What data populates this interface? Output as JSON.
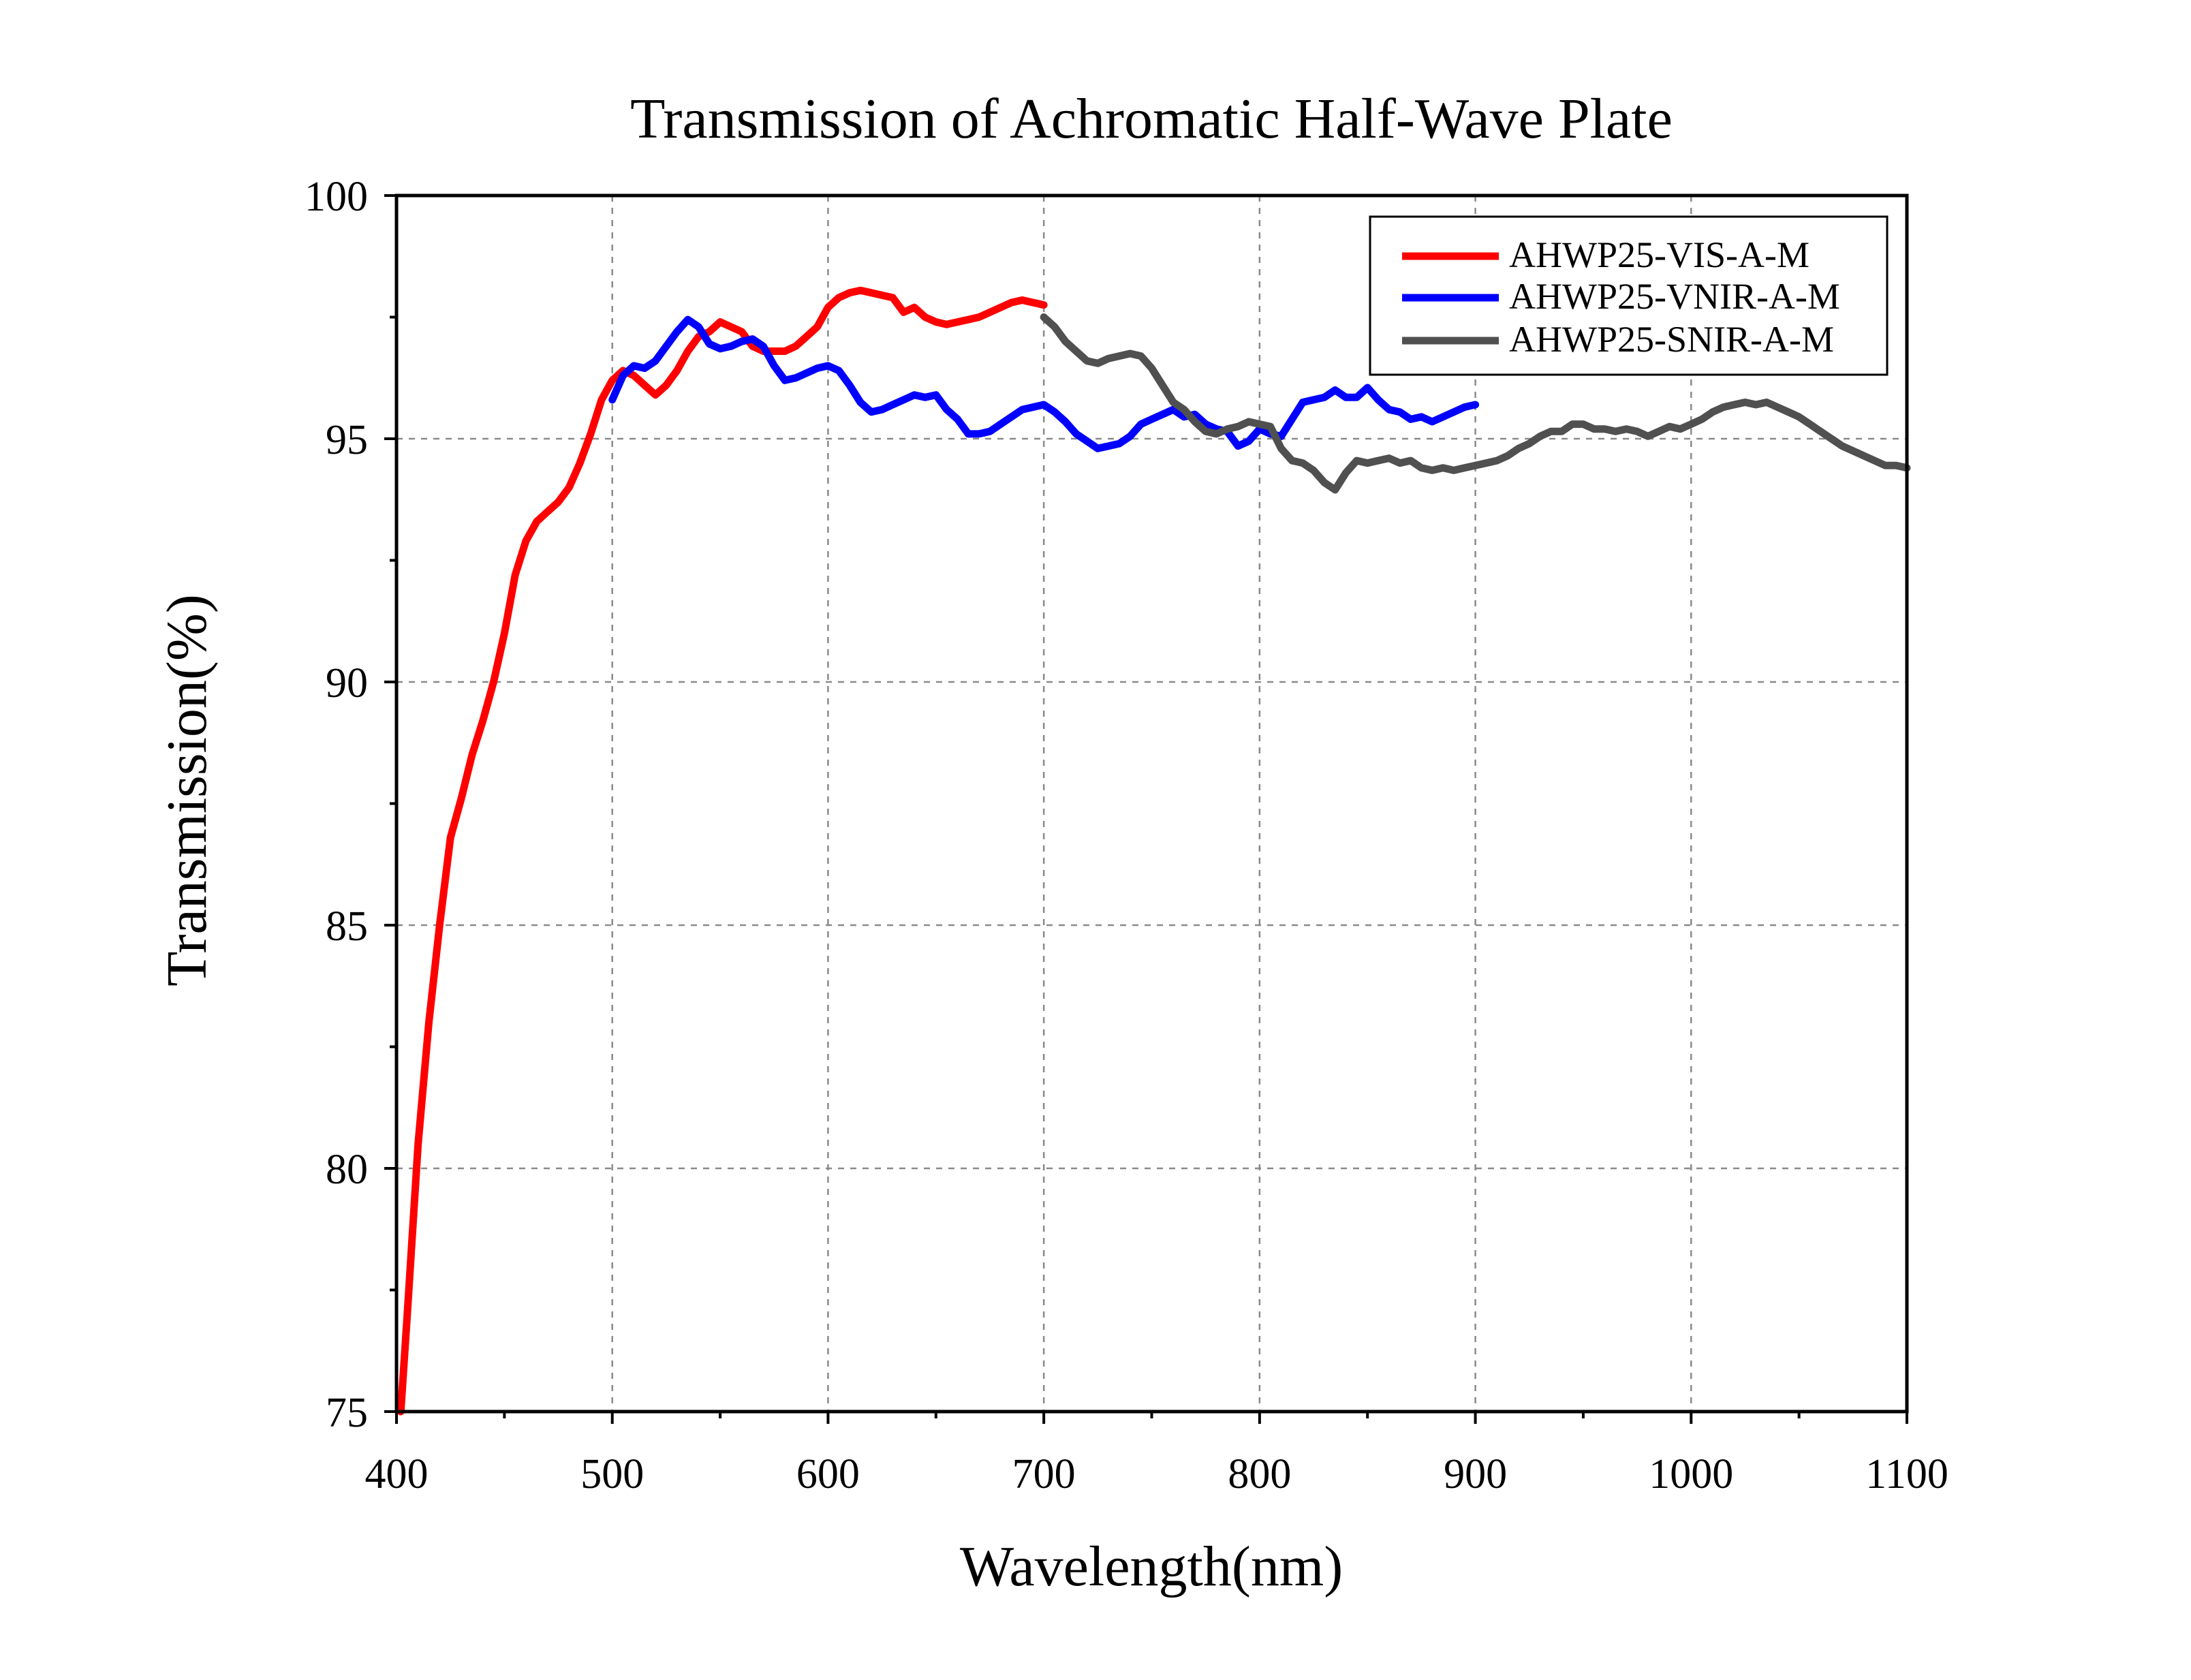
{
  "chart_data": {
    "type": "line",
    "title": "Transmission of Achromatic Half-Wave Plate",
    "xlabel": "Wavelength(nm)",
    "ylabel": "Transmission(%)",
    "xlim": [
      400,
      1100
    ],
    "ylim": [
      75,
      100
    ],
    "x_ticks": [
      "400",
      "500",
      "600",
      "700",
      "800",
      "900",
      "1000",
      "1100"
    ],
    "y_ticks": [
      "75",
      "80",
      "85",
      "90",
      "95",
      "100"
    ],
    "grid": true,
    "legend_position": "top-right",
    "series": [
      {
        "name": "AHWP25-VIS-A-M",
        "color": "#ff0000",
        "x": [
          402,
          405,
          410,
          415,
          420,
          425,
          430,
          435,
          440,
          445,
          450,
          455,
          460,
          465,
          470,
          475,
          480,
          485,
          490,
          495,
          500,
          505,
          510,
          515,
          520,
          525,
          530,
          535,
          540,
          545,
          550,
          555,
          560,
          565,
          570,
          575,
          580,
          585,
          590,
          595,
          600,
          605,
          610,
          615,
          620,
          625,
          630,
          635,
          640,
          645,
          650,
          655,
          660,
          665,
          670,
          675,
          680,
          685,
          690,
          695,
          700
        ],
        "y": [
          75.0,
          77.0,
          80.5,
          83.0,
          85.0,
          86.8,
          87.6,
          88.5,
          89.2,
          90.0,
          91.0,
          92.2,
          92.9,
          93.3,
          93.5,
          93.7,
          94.0,
          94.5,
          95.1,
          95.8,
          96.2,
          96.4,
          96.3,
          96.1,
          95.9,
          96.1,
          96.4,
          96.8,
          97.1,
          97.2,
          97.4,
          97.3,
          97.2,
          96.9,
          96.8,
          96.8,
          96.8,
          96.9,
          97.1,
          97.3,
          97.7,
          97.9,
          98.0,
          98.05,
          98.0,
          97.95,
          97.9,
          97.6,
          97.7,
          97.5,
          97.4,
          97.35,
          97.4,
          97.45,
          97.5,
          97.6,
          97.7,
          97.8,
          97.85,
          97.8,
          97.75
        ]
      },
      {
        "name": "AHWP25-VNIR-A-M",
        "color": "#0000ff",
        "x": [
          500,
          505,
          510,
          515,
          520,
          525,
          530,
          535,
          540,
          545,
          550,
          555,
          560,
          565,
          570,
          575,
          580,
          585,
          590,
          595,
          600,
          605,
          610,
          615,
          620,
          625,
          630,
          635,
          640,
          645,
          650,
          655,
          660,
          665,
          670,
          675,
          680,
          685,
          690,
          695,
          700,
          705,
          710,
          715,
          720,
          725,
          730,
          735,
          740,
          745,
          750,
          755,
          760,
          765,
          770,
          775,
          780,
          785,
          790,
          795,
          800,
          805,
          810,
          815,
          820,
          825,
          830,
          835,
          840,
          845,
          850,
          855,
          860,
          865,
          870,
          875,
          880,
          885,
          890,
          895,
          900
        ],
        "y": [
          95.8,
          96.3,
          96.5,
          96.45,
          96.6,
          96.9,
          97.2,
          97.45,
          97.3,
          96.95,
          96.85,
          96.9,
          97.0,
          97.05,
          96.9,
          96.5,
          96.2,
          96.25,
          96.35,
          96.45,
          96.5,
          96.4,
          96.1,
          95.75,
          95.55,
          95.6,
          95.7,
          95.8,
          95.9,
          95.85,
          95.9,
          95.6,
          95.4,
          95.1,
          95.1,
          95.15,
          95.3,
          95.45,
          95.6,
          95.65,
          95.7,
          95.55,
          95.35,
          95.1,
          94.95,
          94.8,
          94.85,
          94.9,
          95.05,
          95.3,
          95.4,
          95.5,
          95.6,
          95.45,
          95.5,
          95.3,
          95.2,
          95.15,
          94.85,
          94.95,
          95.2,
          95.1,
          95.05,
          95.4,
          95.75,
          95.8,
          95.85,
          96.0,
          95.85,
          95.85,
          96.05,
          95.8,
          95.6,
          95.55,
          95.4,
          95.45,
          95.35,
          95.45,
          95.55,
          95.65,
          95.7
        ]
      },
      {
        "name": "AHWP25-SNIR-A-M",
        "color": "#505050",
        "x": [
          700,
          705,
          710,
          715,
          720,
          725,
          730,
          735,
          740,
          745,
          750,
          755,
          760,
          765,
          770,
          775,
          780,
          785,
          790,
          795,
          800,
          805,
          810,
          815,
          820,
          825,
          830,
          835,
          840,
          845,
          850,
          855,
          860,
          865,
          870,
          875,
          880,
          885,
          890,
          895,
          900,
          905,
          910,
          915,
          920,
          925,
          930,
          935,
          940,
          945,
          950,
          955,
          960,
          965,
          970,
          975,
          980,
          985,
          990,
          995,
          1000,
          1005,
          1010,
          1015,
          1020,
          1025,
          1030,
          1035,
          1040,
          1045,
          1050,
          1055,
          1060,
          1065,
          1070,
          1075,
          1080,
          1085,
          1090,
          1095,
          1100
        ],
        "y": [
          97.5,
          97.3,
          97.0,
          96.8,
          96.6,
          96.55,
          96.65,
          96.7,
          96.75,
          96.7,
          96.45,
          96.1,
          95.75,
          95.6,
          95.35,
          95.15,
          95.1,
          95.2,
          95.25,
          95.35,
          95.3,
          95.25,
          94.8,
          94.55,
          94.5,
          94.35,
          94.1,
          93.95,
          94.3,
          94.55,
          94.5,
          94.55,
          94.6,
          94.5,
          94.55,
          94.4,
          94.35,
          94.4,
          94.35,
          94.4,
          94.45,
          94.5,
          94.55,
          94.65,
          94.8,
          94.9,
          95.05,
          95.15,
          95.15,
          95.3,
          95.3,
          95.2,
          95.2,
          95.15,
          95.2,
          95.15,
          95.05,
          95.15,
          95.25,
          95.2,
          95.3,
          95.4,
          95.55,
          95.65,
          95.7,
          95.75,
          95.7,
          95.75,
          95.65,
          95.55,
          95.45,
          95.3,
          95.15,
          95.0,
          94.85,
          94.75,
          94.65,
          94.55,
          94.45,
          94.45,
          94.4
        ]
      }
    ]
  }
}
